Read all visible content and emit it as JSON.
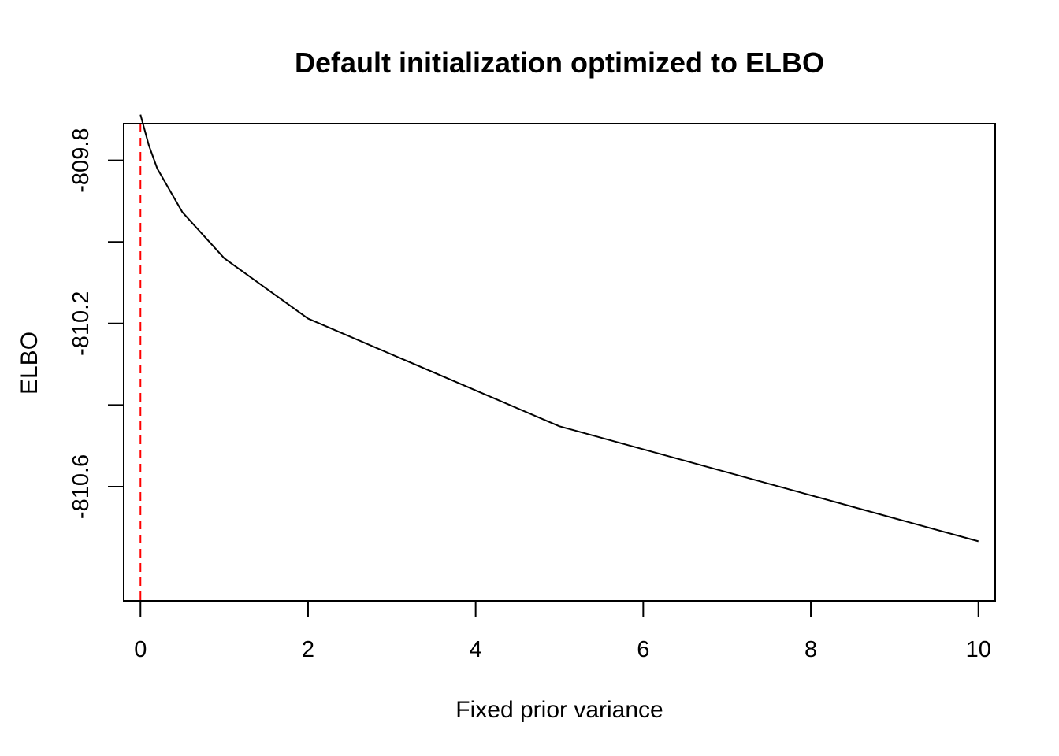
{
  "chart_data": {
    "type": "line",
    "title": "Default initialization optimized to ELBO",
    "xlabel": "Fixed prior variance",
    "ylabel": "ELBO",
    "xlim": [
      -0.2,
      10.2
    ],
    "ylim": [
      -810.88,
      -809.71
    ],
    "x_ticks": [
      0,
      2,
      4,
      6,
      8,
      10
    ],
    "x_tick_labels": [
      "0",
      "2",
      "4",
      "6",
      "8",
      "10"
    ],
    "y_ticks": [
      -809.8,
      -810.0,
      -810.2,
      -810.4,
      -810.6
    ],
    "y_tick_labels": [
      "-809.8",
      "",
      "-810.2",
      "",
      "-810.6"
    ],
    "grid": false,
    "legend": "none",
    "series": [
      {
        "color": "#000000",
        "x": [
          0,
          0.1,
          0.2,
          0.5,
          1,
          2,
          5,
          10
        ],
        "y": [
          -809.688,
          -809.763,
          -809.82,
          -809.927,
          -810.04,
          -810.188,
          -810.452,
          -810.734
        ]
      }
    ],
    "reference_lines": [
      {
        "orientation": "vertical",
        "x": 0,
        "color": "#ff0000",
        "style": "dashed"
      }
    ]
  }
}
